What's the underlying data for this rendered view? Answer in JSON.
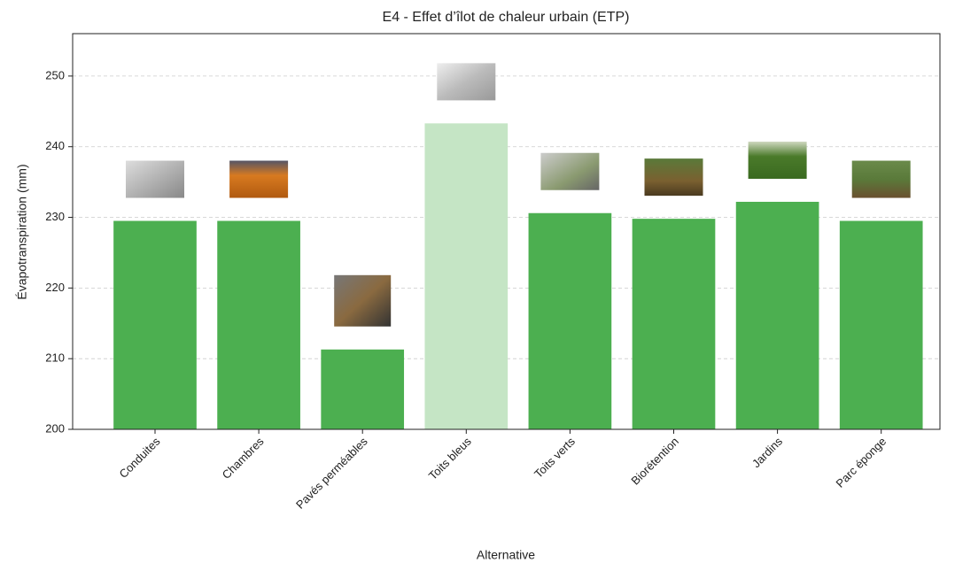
{
  "chart_data": {
    "type": "bar",
    "title": "E4 - Effet d’îlot de chaleur urbain (ETP)",
    "xlabel": "Alternative",
    "ylabel": "Évapotranspiration (mm)",
    "categories": [
      "Conduites",
      "Chambres",
      "Pavés perméables",
      "Toits bleus",
      "Toits verts",
      "Biorétention",
      "Jardins",
      "Parc éponge"
    ],
    "values": [
      229.5,
      229.5,
      211.3,
      243.3,
      230.6,
      229.8,
      232.2,
      229.5
    ],
    "colors": [
      "#4caf50",
      "#4caf50",
      "#4caf50",
      "#c5e5c5",
      "#4caf50",
      "#4caf50",
      "#4caf50",
      "#4caf50"
    ],
    "ylim": [
      200,
      256
    ],
    "yticks": [
      200,
      210,
      220,
      230,
      240,
      250
    ],
    "grid": true
  }
}
